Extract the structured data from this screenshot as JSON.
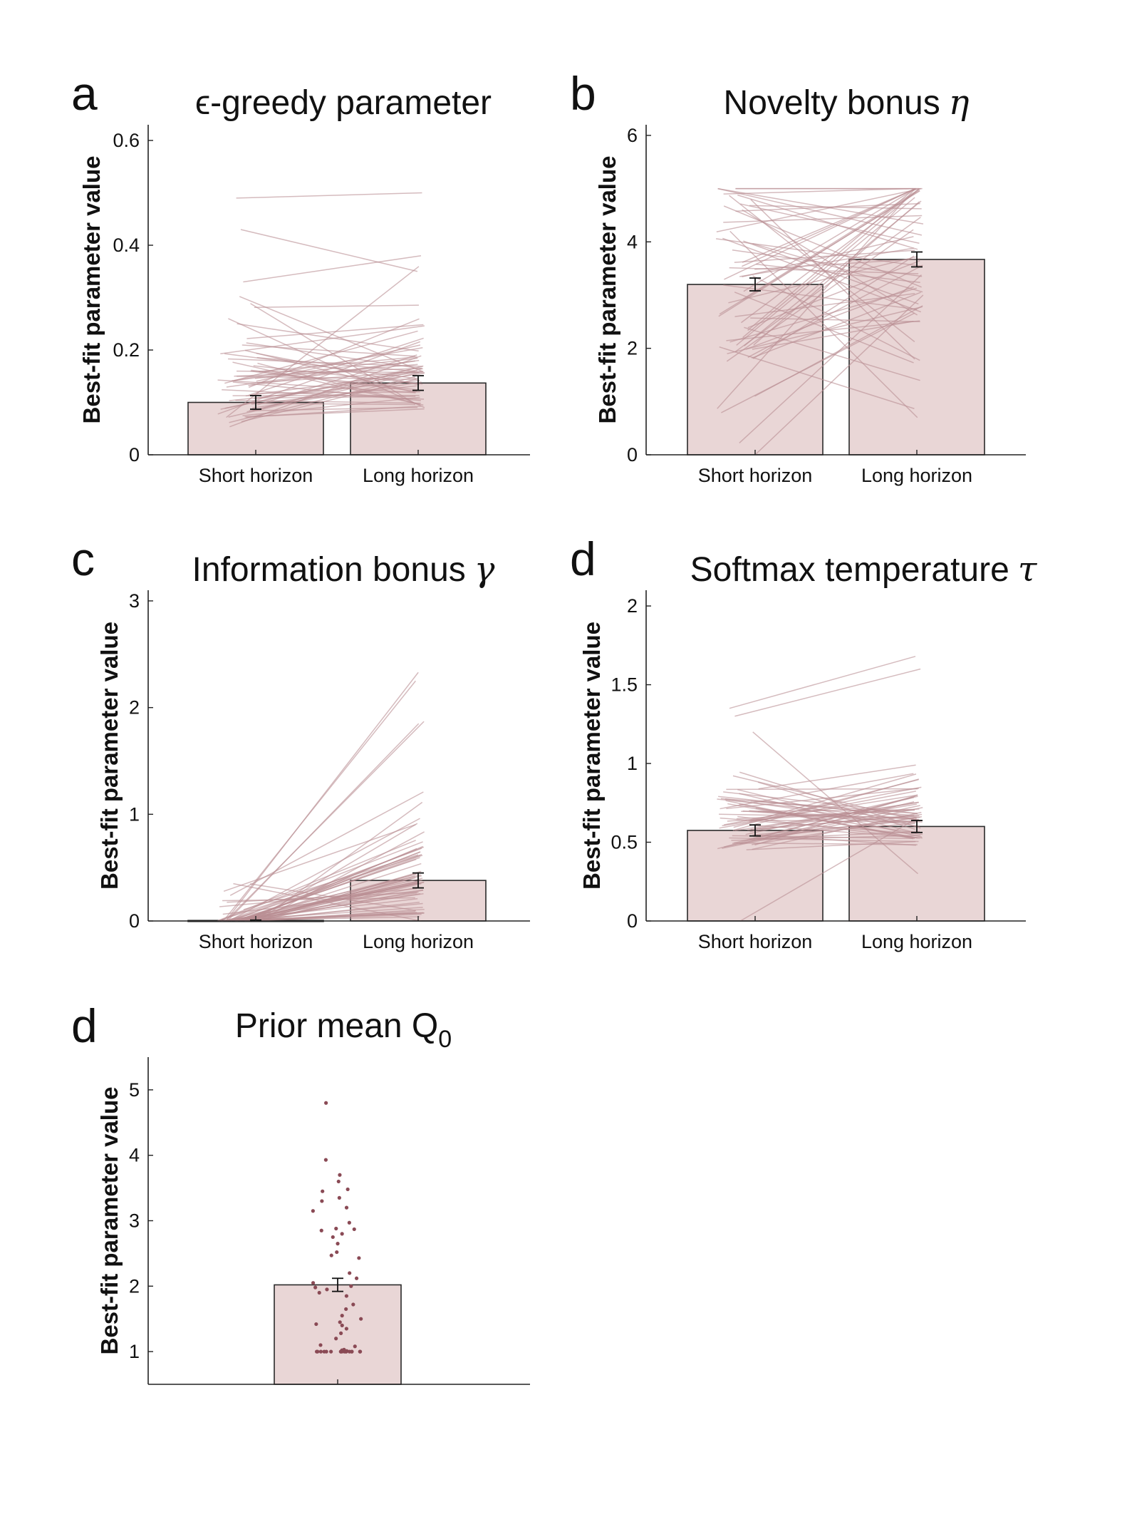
{
  "colors": {
    "bar_fill": "#e9d6d6",
    "bar_edge": "#2a2a2a",
    "subject_line": "#b98e92",
    "dot": "#8a4a55",
    "axis": "#222222"
  },
  "chart_data": [
    {
      "type": "bar",
      "letter": "a",
      "title": "ϵ-greedy parameter",
      "ylabel": "Best-fit parameter value",
      "categories": [
        "Short horizon",
        "Long horizon"
      ],
      "values": [
        0.1,
        0.137
      ],
      "errors": [
        0.013,
        0.014
      ],
      "ylim": [
        0,
        0.63
      ],
      "yticks": [
        0,
        0.2,
        0.4,
        0.6
      ],
      "ytick_labels": [
        "0",
        "0.2",
        "0.4",
        "0.6"
      ],
      "subject_lines": {
        "n": 64,
        "seed": 11,
        "short_mean": 0.1,
        "long_mean": 0.137,
        "short_spread": 0.1,
        "long_spread": 0.1,
        "min": 0,
        "max": 0.5,
        "examples": [
          [
            0.49,
            0.5
          ],
          [
            0.43,
            0.35
          ],
          [
            0.33,
            0.38
          ],
          [
            0.26,
            0.09
          ]
        ]
      }
    },
    {
      "type": "bar",
      "letter": "b",
      "title": "Novelty bonus",
      "title_symbol": "η",
      "ylabel": "Best-fit parameter value",
      "categories": [
        "Short horizon",
        "Long horizon"
      ],
      "values": [
        3.2,
        3.67
      ],
      "errors": [
        0.12,
        0.14
      ],
      "ylim": [
        0,
        6.2
      ],
      "yticks": [
        0,
        2,
        4,
        6
      ],
      "ytick_labels": [
        "0",
        "2",
        "4",
        "6"
      ],
      "subject_lines": {
        "n": 64,
        "seed": 23,
        "short_mean": 3.2,
        "long_mean": 3.67,
        "short_spread": 1.1,
        "long_spread": 1.1,
        "min": 0,
        "max": 5,
        "examples": [
          [
            5.0,
            5.0
          ],
          [
            4.9,
            5.0
          ],
          [
            0.0,
            3.0
          ],
          [
            4.2,
            0.7
          ],
          [
            1.1,
            2.8
          ]
        ]
      }
    },
    {
      "type": "bar",
      "letter": "c",
      "title": "Information bonus",
      "title_symbol": "γ",
      "ylabel": "Best-fit parameter value",
      "categories": [
        "Short horizon",
        "Long horizon"
      ],
      "values": [
        0.005,
        0.38
      ],
      "errors": [
        0.003,
        0.07
      ],
      "ylim": [
        0,
        3.1
      ],
      "yticks": [
        0,
        1,
        2,
        3
      ],
      "ytick_labels": [
        "0",
        "1",
        "2",
        "3"
      ],
      "subject_lines": {
        "n": 64,
        "seed": 37,
        "short_mean": 0.005,
        "long_mean": 0.38,
        "short_spread": 0.01,
        "long_spread": 0.45,
        "min": 0,
        "max": 2.35,
        "examples": [
          [
            0.0,
            2.33
          ],
          [
            0.0,
            2.25
          ],
          [
            0.0,
            1.87
          ],
          [
            0.0,
            1.85
          ],
          [
            0.35,
            0.0
          ]
        ]
      }
    },
    {
      "type": "bar",
      "letter": "d",
      "title": "Softmax temperature",
      "title_symbol": "τ",
      "ylabel": "Best-fit parameter value",
      "categories": [
        "Short horizon",
        "Long horizon"
      ],
      "values": [
        0.575,
        0.6
      ],
      "errors": [
        0.035,
        0.038
      ],
      "ylim": [
        0,
        2.1
      ],
      "yticks": [
        0,
        0.5,
        1,
        1.5,
        2
      ],
      "ytick_labels": [
        "0",
        "0.5",
        "1",
        "1.5",
        "2"
      ],
      "subject_lines": {
        "n": 64,
        "seed": 51,
        "short_mean": 0.575,
        "long_mean": 0.6,
        "short_spread": 0.25,
        "long_spread": 0.25,
        "min": 0,
        "max": 1.7,
        "examples": [
          [
            1.35,
            1.68
          ],
          [
            1.3,
            1.6
          ],
          [
            0.0,
            0.65
          ],
          [
            1.2,
            0.3
          ]
        ]
      }
    },
    {
      "type": "bar",
      "letter": "d",
      "title": "Prior mean Q",
      "title_subscript": "0",
      "ylabel": "Best-fit parameter value",
      "categories": [
        ""
      ],
      "values": [
        2.02
      ],
      "errors": [
        0.1
      ],
      "ylim": [
        0.5,
        5.5
      ],
      "yticks": [
        1,
        2,
        3,
        4,
        5
      ],
      "ytick_labels": [
        "1",
        "2",
        "3",
        "4",
        "5"
      ],
      "dots": [
        4.8,
        3.93,
        3.7,
        3.6,
        3.48,
        3.45,
        3.35,
        3.3,
        3.2,
        3.15,
        2.97,
        2.88,
        2.87,
        2.85,
        2.8,
        2.75,
        2.65,
        2.52,
        2.47,
        2.43,
        2.2,
        2.12,
        2.05,
        2.0,
        1.98,
        1.95,
        1.9,
        1.85,
        1.72,
        1.65,
        1.55,
        1.5,
        1.45,
        1.42,
        1.4,
        1.35,
        1.28,
        1.2,
        1.1,
        1.08,
        1.03,
        1.02,
        1.01,
        1.0,
        1.0,
        1.0,
        1.0,
        1.0,
        1.0,
        1.0,
        1.0,
        1.0,
        1.0,
        1.0,
        1.0,
        1.0,
        1.0,
        1.0,
        1.0,
        1.0
      ]
    }
  ]
}
